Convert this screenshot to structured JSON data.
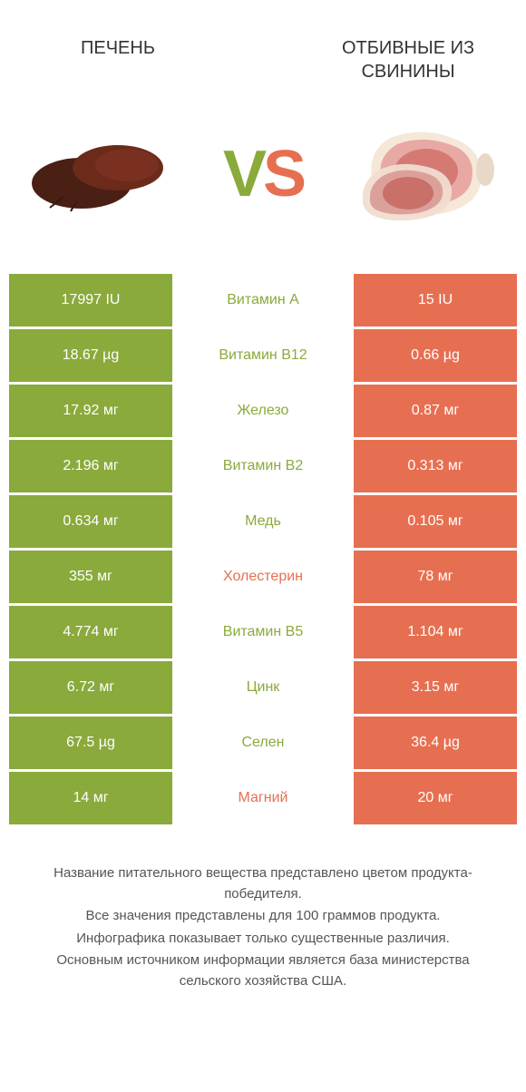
{
  "colors": {
    "green": "#8aaa3b",
    "orange": "#e76f51",
    "liver_dark": "#4a1f14",
    "liver_mid": "#6b2a1a",
    "pork_pink": "#e8a9a4",
    "pork_fat": "#f5e8d8",
    "pork_meat": "#d47a72",
    "pork_bone": "#e8d8c8",
    "text_dark": "#333333",
    "footer_text": "#555555"
  },
  "header": {
    "left": "ПЕЧЕНЬ",
    "right": "ОТБИВНЫЕ ИЗ СВИНИНЫ"
  },
  "vs": {
    "v": "V",
    "s": "S"
  },
  "rows": [
    {
      "left": "17997 IU",
      "mid": "Витамин A",
      "right": "15 IU",
      "winner": "left"
    },
    {
      "left": "18.67 µg",
      "mid": "Витамин B12",
      "right": "0.66 µg",
      "winner": "left"
    },
    {
      "left": "17.92 мг",
      "mid": "Железо",
      "right": "0.87 мг",
      "winner": "left"
    },
    {
      "left": "2.196 мг",
      "mid": "Витамин B2",
      "right": "0.313 мг",
      "winner": "left"
    },
    {
      "left": "0.634 мг",
      "mid": "Медь",
      "right": "0.105 мг",
      "winner": "left"
    },
    {
      "left": "355 мг",
      "mid": "Холестерин",
      "right": "78 мг",
      "winner": "right"
    },
    {
      "left": "4.774 мг",
      "mid": "Витамин B5",
      "right": "1.104 мг",
      "winner": "left"
    },
    {
      "left": "6.72 мг",
      "mid": "Цинк",
      "right": "3.15 мг",
      "winner": "left"
    },
    {
      "left": "67.5 µg",
      "mid": "Селен",
      "right": "36.4 µg",
      "winner": "left"
    },
    {
      "left": "14 мг",
      "mid": "Магний",
      "right": "20 мг",
      "winner": "right"
    }
  ],
  "footer": [
    "Название питательного вещества представлено цветом продукта-победителя.",
    "Все значения представлены для 100 граммов продукта.",
    "Инфографика показывает только существенные различия.",
    "Основным источником информации является база министерства сельского хозяйства США."
  ]
}
